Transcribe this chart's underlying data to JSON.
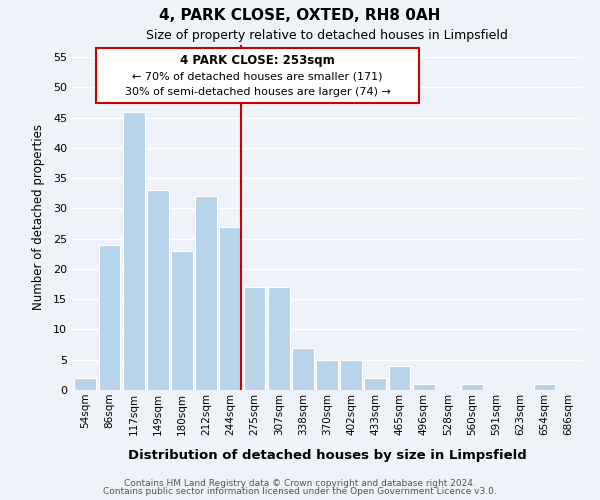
{
  "title": "4, PARK CLOSE, OXTED, RH8 0AH",
  "subtitle": "Size of property relative to detached houses in Limpsfield",
  "xlabel": "Distribution of detached houses by size in Limpsfield",
  "ylabel": "Number of detached properties",
  "bin_labels": [
    "54sqm",
    "86sqm",
    "117sqm",
    "149sqm",
    "180sqm",
    "212sqm",
    "244sqm",
    "275sqm",
    "307sqm",
    "338sqm",
    "370sqm",
    "402sqm",
    "433sqm",
    "465sqm",
    "496sqm",
    "528sqm",
    "560sqm",
    "591sqm",
    "623sqm",
    "654sqm",
    "686sqm"
  ],
  "bar_heights": [
    2,
    24,
    46,
    33,
    23,
    32,
    27,
    17,
    17,
    7,
    5,
    5,
    2,
    4,
    1,
    0,
    1,
    0,
    0,
    1,
    0
  ],
  "bar_color": "#b8d4ea",
  "vline_bin": 6,
  "vline_color": "#cc0000",
  "annotation_title": "4 PARK CLOSE: 253sqm",
  "annotation_line1": "← 70% of detached houses are smaller (171)",
  "annotation_line2": "30% of semi-detached houses are larger (74) →",
  "annotation_box_facecolor": "#ffffff",
  "annotation_box_edgecolor": "#cc0000",
  "ylim": [
    0,
    57
  ],
  "yticks": [
    0,
    5,
    10,
    15,
    20,
    25,
    30,
    35,
    40,
    45,
    50,
    55
  ],
  "footer_line1": "Contains HM Land Registry data © Crown copyright and database right 2024.",
  "footer_line2": "Contains public sector information licensed under the Open Government Licence v3.0.",
  "background_color": "#eef2f9",
  "grid_color": "#ffffff"
}
